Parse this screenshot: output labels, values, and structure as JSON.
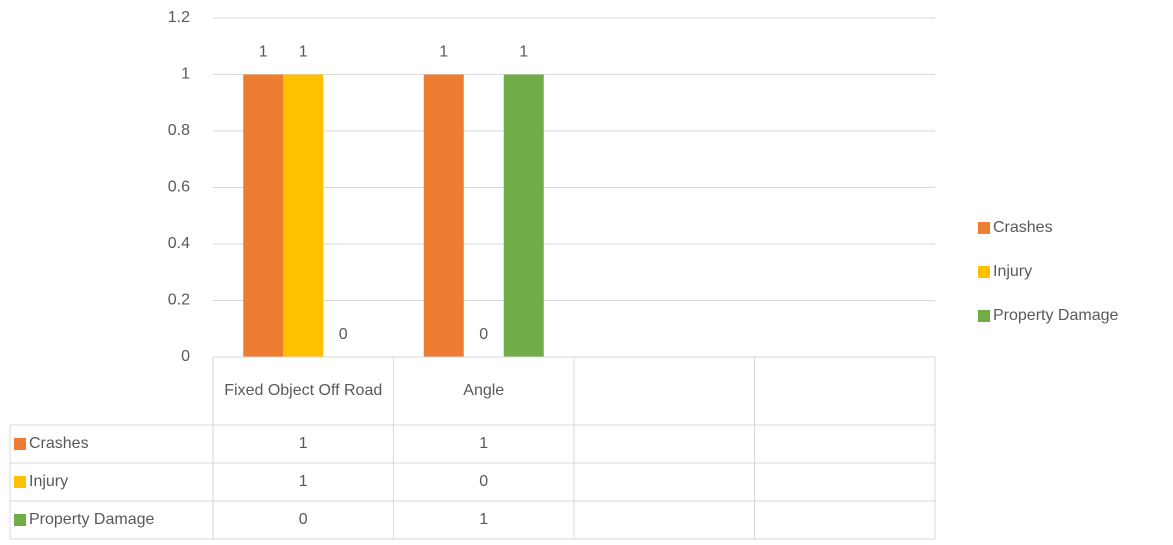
{
  "chart_data": {
    "type": "bar",
    "categories": [
      "Fixed Object Off Road",
      "Angle",
      null,
      null
    ],
    "series": [
      {
        "name": "Crashes",
        "color": "#ed7d31",
        "values": [
          1,
          1,
          null,
          null
        ]
      },
      {
        "name": "Injury",
        "color": "#ffc000",
        "values": [
          1,
          0,
          null,
          null
        ]
      },
      {
        "name": "Property Damage",
        "color": "#70ad47",
        "values": [
          0,
          1,
          null,
          null
        ]
      }
    ],
    "ylim": [
      0,
      1.2
    ],
    "yticks": [
      0,
      0.2,
      0.4,
      0.6,
      0.8,
      1,
      1.2
    ],
    "grid": true,
    "legend": "right",
    "data_table": true
  }
}
